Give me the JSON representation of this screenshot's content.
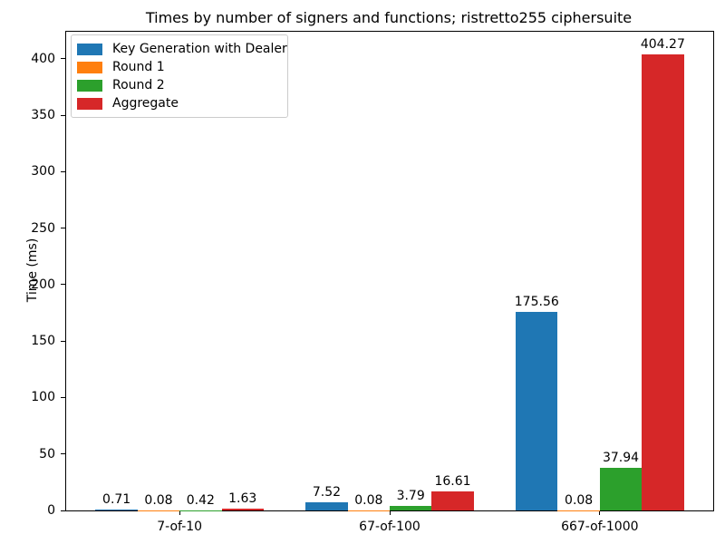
{
  "figure": {
    "background": "#ffffff",
    "text_color": "#000000",
    "axis_color": "#000000"
  },
  "chart_data": {
    "type": "bar",
    "title": "Times by number of signers and functions; ristretto255 ciphersuite",
    "xlabel": "",
    "ylabel": "Time (ms)",
    "categories": [
      "7-of-10",
      "67-of-100",
      "667-of-1000"
    ],
    "series": [
      {
        "name": "Key Generation with Dealer",
        "color": "#1f77b4",
        "values": [
          0.71,
          7.52,
          175.56
        ]
      },
      {
        "name": "Round 1",
        "color": "#ff7f0e",
        "values": [
          0.08,
          0.08,
          0.08
        ]
      },
      {
        "name": "Round 2",
        "color": "#2ca02c",
        "values": [
          0.42,
          3.79,
          37.94
        ]
      },
      {
        "name": "Aggregate",
        "color": "#d62728",
        "values": [
          1.63,
          16.61,
          404.27
        ]
      }
    ],
    "bar_labels": [
      [
        "0.71",
        "7.52",
        "175.56"
      ],
      [
        "0.08",
        "0.08",
        "0.08"
      ],
      [
        "0.42",
        "3.79",
        "37.94"
      ],
      [
        "1.63",
        "16.61",
        "404.27"
      ]
    ],
    "yticks": [
      0,
      50,
      100,
      150,
      200,
      250,
      300,
      350,
      400
    ],
    "ylim": [
      0,
      424
    ],
    "xlim_units": [
      -0.54,
      2.54
    ],
    "bar_group_offsets": [
      -0.3,
      -0.1,
      0.1,
      0.3
    ],
    "bar_width_units": 0.2,
    "grid": false,
    "legend": {
      "position": "upper left",
      "entries": [
        "Key Generation with Dealer",
        "Round 1",
        "Round 2",
        "Aggregate"
      ]
    }
  }
}
